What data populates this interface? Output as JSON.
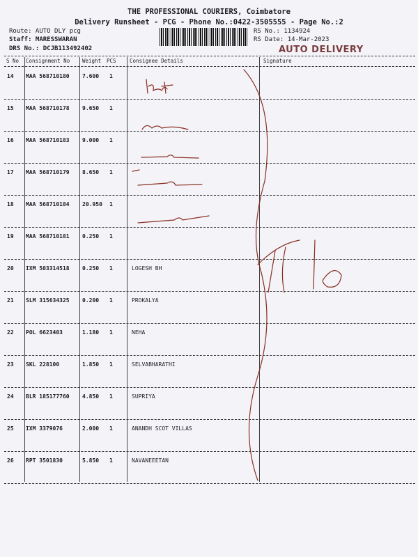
{
  "header": {
    "company": "THE PROFESSIONAL COURIERS, Coimbatore",
    "subtitle": "Delivery Runsheet - PCG - Phone No.:0422-3505555 - Page No.:2",
    "route": "Route: AUTO DLY pcg",
    "staff": "Staff: MARESSWARAN",
    "drs": "DRS No.: DCJB113492402",
    "rs_no": "RS No.: 1134924",
    "rs_date": "RS Date: 14-Mar-2023",
    "stamp": "AUTO DELIVERY"
  },
  "columns": [
    "S No",
    "Consignment No",
    "Weight",
    "PCS",
    "Consignee Details",
    "Signature"
  ],
  "rows": [
    {
      "sno": "14",
      "consignment": "MAA 568710180",
      "weight": "7.600",
      "pcs": "1",
      "consignee": ""
    },
    {
      "sno": "15",
      "consignment": "MAA 568710178",
      "weight": "9.650",
      "pcs": "1",
      "consignee": ""
    },
    {
      "sno": "16",
      "consignment": "MAA 568710183",
      "weight": "9.000",
      "pcs": "1",
      "consignee": ""
    },
    {
      "sno": "17",
      "consignment": "MAA 568710179",
      "weight": "8.650",
      "pcs": "1",
      "consignee": ""
    },
    {
      "sno": "18",
      "consignment": "MAA 568710184",
      "weight": "20.950",
      "pcs": "1",
      "consignee": ""
    },
    {
      "sno": "19",
      "consignment": "MAA 568710181",
      "weight": "0.250",
      "pcs": "1",
      "consignee": ""
    },
    {
      "sno": "20",
      "consignment": "IXM 503314518",
      "weight": "0.250",
      "pcs": "1",
      "consignee": "LOGESH BH"
    },
    {
      "sno": "21",
      "consignment": "SLM 315634325",
      "weight": "0.200",
      "pcs": "1",
      "consignee": "PROKALYA"
    },
    {
      "sno": "22",
      "consignment": "POL 6623403",
      "weight": "1.180",
      "pcs": "1",
      "consignee": "NEHA"
    },
    {
      "sno": "23",
      "consignment": "SKL 228100",
      "weight": "1.850",
      "pcs": "1",
      "consignee": "SELVABHARATHI"
    },
    {
      "sno": "24",
      "consignment": "BLR 185177760",
      "weight": "4.850",
      "pcs": "1",
      "consignee": "SUPRIYA"
    },
    {
      "sno": "25",
      "consignment": "IXM 3379076",
      "weight": "2.000",
      "pcs": "1",
      "consignee": "ANANDH SCOT VILLAS"
    },
    {
      "sno": "26",
      "consignment": "RPT 3501830",
      "weight": "5.850",
      "pcs": "1",
      "consignee": "NAVANEEETAN"
    }
  ],
  "ink_color": "#8a2e22"
}
